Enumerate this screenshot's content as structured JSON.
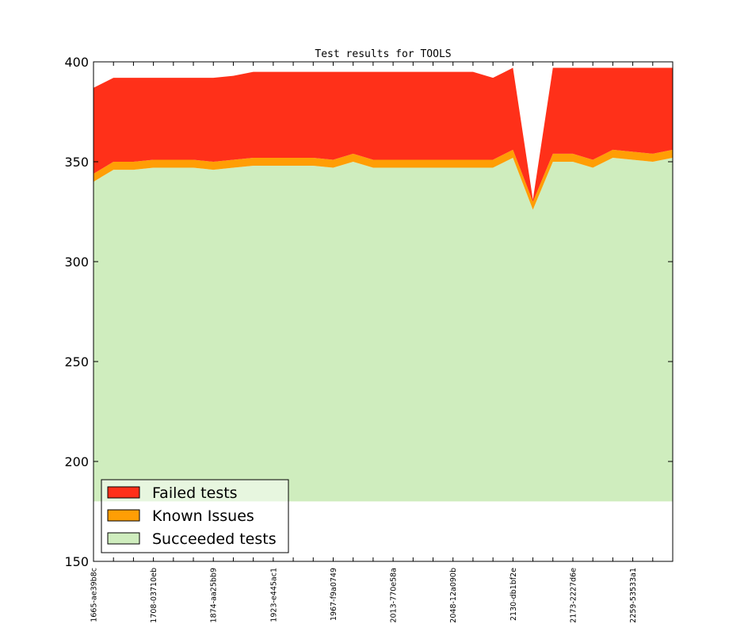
{
  "chart_data": {
    "type": "area",
    "title": "Test results for TOOLS",
    "xlabel": "",
    "ylabel": "",
    "ylim": [
      150,
      400
    ],
    "yticks": [
      150,
      200,
      250,
      300,
      350,
      400
    ],
    "legend_position": "lower-left",
    "x_tick_labels": [
      "1665-ae39b8c",
      "1708-03710eb",
      "1874-aa25bb9",
      "1923-e445ac1",
      "1967-f9a0749",
      "2013-770e58a",
      "2048-12a090b",
      "2130-db1bf2e",
      "2173-2227d6e",
      "2259-53533a1"
    ],
    "x_tick_label_indices": [
      0,
      3,
      6,
      9,
      12,
      15,
      18,
      21,
      24,
      27
    ],
    "succeeded_baseline": 180,
    "series": [
      {
        "name": "Failed tests",
        "color": "#ff3019",
        "values": [
          43,
          42,
          42,
          41,
          41,
          41,
          42,
          42,
          43,
          43,
          43,
          43,
          44,
          41,
          44,
          44,
          44,
          44,
          44,
          44,
          41,
          41,
          1,
          43,
          43,
          46,
          41,
          42,
          43,
          41
        ]
      },
      {
        "name": "Known Issues",
        "color": "#ff9e05",
        "values": [
          4,
          4,
          4,
          4,
          4,
          4,
          4,
          4,
          4,
          4,
          4,
          4,
          4,
          4,
          4,
          4,
          4,
          4,
          4,
          4,
          4,
          4,
          4,
          4,
          4,
          4,
          4,
          4,
          4,
          4
        ]
      },
      {
        "name": "Succeeded tests",
        "color": "#cfedbe",
        "values": [
          340,
          346,
          346,
          347,
          347,
          347,
          346,
          347,
          348,
          348,
          348,
          348,
          347,
          350,
          347,
          347,
          347,
          347,
          347,
          347,
          347,
          352,
          326,
          350,
          350,
          347,
          352,
          351,
          350,
          352
        ]
      }
    ]
  }
}
